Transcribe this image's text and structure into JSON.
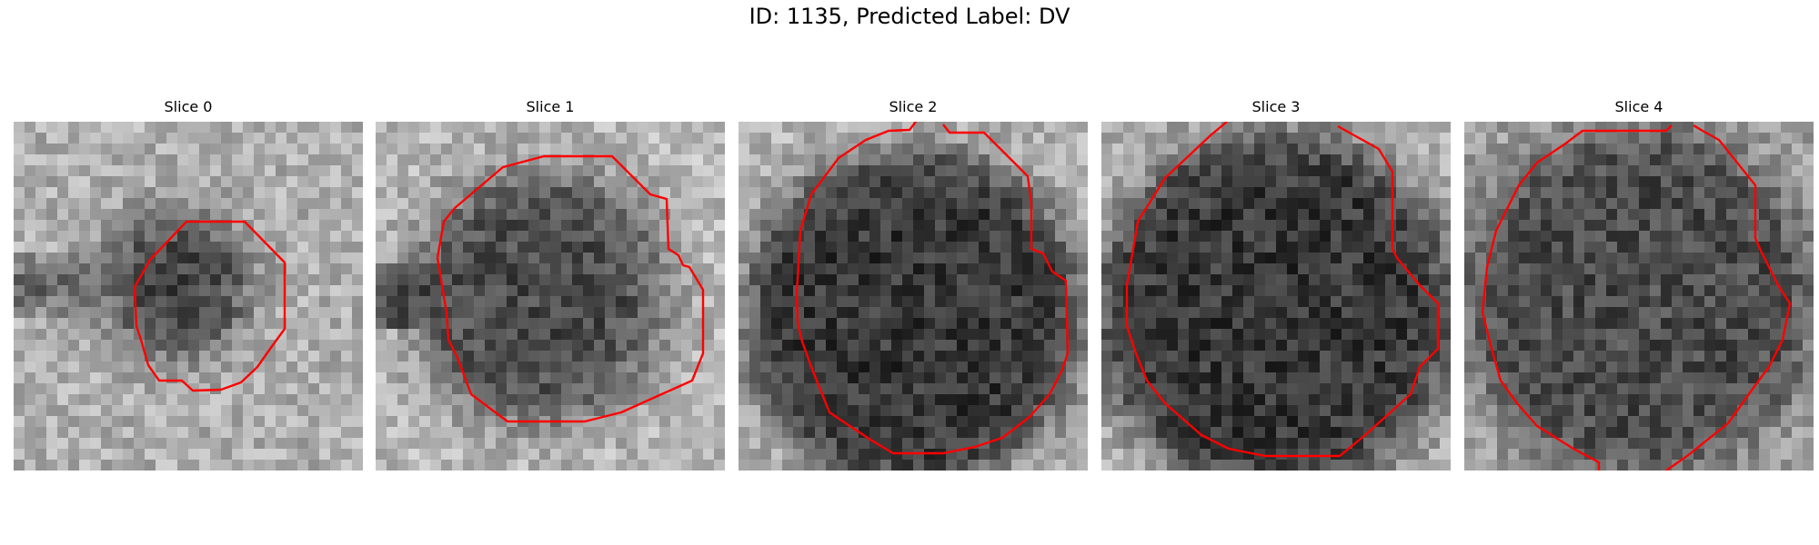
{
  "suptitle": "ID: 1135, Predicted Label: DV",
  "contour_color": "#ff0000",
  "slices": [
    {
      "title": "Slice 0"
    },
    {
      "title": "Slice 1"
    },
    {
      "title": "Slice 2"
    },
    {
      "title": "Slice 3"
    },
    {
      "title": "Slice 4"
    }
  ]
}
